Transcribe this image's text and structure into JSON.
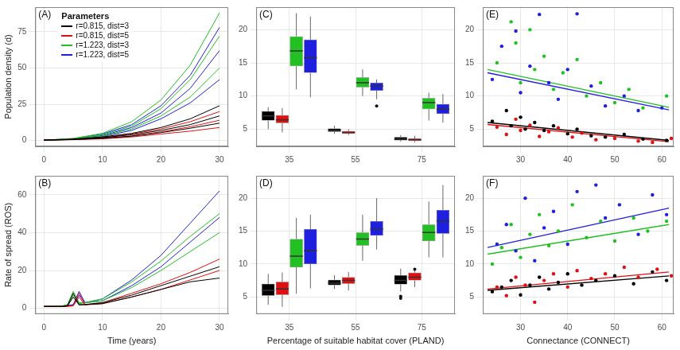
{
  "chart_data": [
    {
      "type": "line",
      "panel_label": "(A)",
      "y_label": "Population density (d)",
      "x": [
        0,
        5,
        10,
        15,
        20,
        25,
        30
      ],
      "xlim": [
        -1.5,
        31.5
      ],
      "xticks": [
        0,
        10,
        20,
        30
      ],
      "ylim": [
        -4,
        92
      ],
      "yticks": [
        0,
        25,
        50,
        75
      ],
      "grid": true,
      "legend": "top-left",
      "legend_title": "Parameters",
      "series": [
        {
          "name": "r=0.815, dist=3",
          "color": "#000000",
          "values": [
            [
              0.3,
              0.8,
              2,
              4,
              7,
              11,
              17
            ],
            [
              0.3,
              1,
              2.5,
              5,
              9,
              15,
              24
            ],
            [
              0.3,
              0.7,
              1.5,
              3,
              5.5,
              8.5,
              12
            ]
          ]
        },
        {
          "name": "r=0.815, dist=5",
          "color": "#e01010",
          "values": [
            [
              0.3,
              0.7,
              1.6,
              3.2,
              6,
              9.5,
              14
            ],
            [
              0.3,
              0.9,
              2.2,
              4.5,
              8,
              13,
              20
            ],
            [
              0.3,
              0.6,
              1.2,
              2.5,
              4.5,
              6.5,
              9
            ]
          ]
        },
        {
          "name": "r=1.223, dist=3",
          "color": "#22c022",
          "values": [
            [
              0.3,
              1.2,
              4,
              10,
              22,
              42,
              72
            ],
            [
              0.3,
              1.5,
              5,
              13,
              28,
              52,
              88
            ],
            [
              0.3,
              1,
              3,
              8,
              17,
              30,
              50
            ]
          ]
        },
        {
          "name": "r=1.223, dist=5",
          "color": "#1f1fe0",
          "values": [
            [
              0.3,
              1.1,
              3.5,
              9,
              19,
              36,
              62
            ],
            [
              0.3,
              1.3,
              4.5,
              11,
              24,
              45,
              78
            ],
            [
              0.3,
              0.9,
              2.8,
              7,
              15,
              26,
              42
            ]
          ]
        }
      ]
    },
    {
      "type": "box",
      "panel_label": "(C)",
      "categories": [
        "35",
        "55",
        "75"
      ],
      "ylim": [
        2.4,
        23.4
      ],
      "yticks": [
        5,
        10,
        15,
        20
      ],
      "grid": true,
      "series": [
        {
          "name": "r=0.815, dist=3",
          "color": "#000000",
          "min": [
            5,
            4.3,
            3.1
          ],
          "q1": [
            6.3,
            4.6,
            3.3
          ],
          "median": [
            7,
            4.8,
            3.5
          ],
          "q3": [
            7.7,
            5.1,
            3.8
          ],
          "max": [
            8.3,
            5.5,
            4.1
          ],
          "outliers": [
            [],
            [],
            []
          ]
        },
        {
          "name": "r=0.815, dist=5",
          "color": "#e01010",
          "min": [
            4.5,
            4.1,
            3.0
          ],
          "q1": [
            5.9,
            4.3,
            3.2
          ],
          "median": [
            6.4,
            4.5,
            3.4
          ],
          "q3": [
            7.1,
            4.7,
            3.6
          ],
          "max": [
            8.2,
            5.0,
            4.0
          ],
          "outliers": [
            [],
            [],
            []
          ]
        },
        {
          "name": "r=1.223, dist=3",
          "color": "#22c022",
          "min": [
            11,
            10,
            6.3
          ],
          "q1": [
            14.5,
            11.3,
            8
          ],
          "median": [
            16.8,
            12,
            9
          ],
          "q3": [
            19,
            12.8,
            9.7
          ],
          "max": [
            22.5,
            14,
            10.5
          ],
          "outliers": [
            [],
            [],
            []
          ]
        },
        {
          "name": "r=1.223, dist=5",
          "color": "#1f1fe0",
          "min": [
            9.8,
            9.5,
            6
          ],
          "q1": [
            13.5,
            10.8,
            7.3
          ],
          "median": [
            15.8,
            11.5,
            8
          ],
          "q3": [
            18.5,
            12,
            8.8
          ],
          "max": [
            22,
            12.5,
            10.3
          ],
          "outliers": [
            [],
            [
              8.5
            ],
            []
          ]
        }
      ]
    },
    {
      "type": "scatter",
      "panel_label": "(E)",
      "xlim": [
        22,
        62.5
      ],
      "xticks": [
        30,
        40,
        50,
        60
      ],
      "ylim": [
        2.4,
        23.4
      ],
      "yticks": [
        5,
        10,
        15,
        20
      ],
      "grid": true,
      "series": [
        {
          "name": "r=0.815, dist=3",
          "color": "#000000",
          "x": [
            24,
            27,
            28,
            30,
            31,
            33,
            35,
            37,
            40,
            42,
            45,
            48,
            52,
            56,
            61
          ],
          "y": [
            6.2,
            7.8,
            5.5,
            6.8,
            5.0,
            6.0,
            4.8,
            5.5,
            4.3,
            5.0,
            4.0,
            3.8,
            4.2,
            3.5,
            3.3
          ],
          "trend_x": [
            23,
            61.5
          ],
          "trend_y": [
            6.0,
            3.3
          ]
        },
        {
          "name": "r=0.815, dist=5",
          "color": "#e01010",
          "x": [
            25,
            27,
            29,
            30,
            32,
            34,
            36,
            38,
            41,
            43,
            46,
            50,
            55,
            58,
            62
          ],
          "y": [
            5.3,
            4.2,
            6.5,
            4.8,
            5.6,
            3.9,
            4.6,
            5.2,
            3.8,
            4.4,
            3.4,
            3.6,
            3.2,
            3.0,
            3.6
          ],
          "trend_x": [
            23,
            61.5
          ],
          "trend_y": [
            5.7,
            3.1
          ]
        },
        {
          "name": "r=1.223, dist=3",
          "color": "#22c022",
          "x": [
            25,
            28,
            29,
            30,
            32,
            33,
            35,
            37,
            39,
            42,
            44,
            47,
            50,
            53,
            56,
            61
          ],
          "y": [
            15,
            21.2,
            18,
            12,
            20,
            14,
            16,
            11,
            13.5,
            15.5,
            10,
            12,
            9,
            11,
            8.2,
            10
          ],
          "trend_x": [
            23,
            61.5
          ],
          "trend_y": [
            14,
            8.3
          ]
        },
        {
          "name": "r=1.223, dist=5",
          "color": "#1f1fe0",
          "x": [
            24,
            26,
            29,
            30,
            32,
            34,
            36,
            38,
            40,
            42,
            45,
            48,
            52,
            55,
            60
          ],
          "y": [
            12.5,
            17.5,
            19.8,
            10.5,
            14.5,
            22.3,
            12,
            9.5,
            14,
            22.4,
            11.5,
            8.5,
            10,
            7.8,
            8.2
          ],
          "trend_x": [
            23,
            61.5
          ],
          "trend_y": [
            13.5,
            7.9
          ]
        }
      ]
    },
    {
      "type": "line",
      "panel_label": "(B)",
      "y_label": "Rate of spread (ROS)",
      "x_label": "Time (years)",
      "x": [
        0,
        3,
        4,
        5,
        6,
        7,
        10,
        15,
        20,
        25,
        30
      ],
      "xlim": [
        -1.5,
        31.5
      ],
      "xticks": [
        0,
        10,
        20,
        30
      ],
      "ylim": [
        -3,
        70
      ],
      "yticks": [
        0,
        20,
        40,
        60
      ],
      "grid": true,
      "series": [
        {
          "name": "r=0.815, dist=3",
          "color": "#000000",
          "values": [
            [
              1,
              1,
              1.5,
              8,
              2,
              2,
              3,
              7,
              12,
              17,
              22
            ],
            [
              1,
              1,
              1.2,
              6,
              1.8,
              2,
              2.5,
              6,
              10,
              14,
              16
            ]
          ]
        },
        {
          "name": "r=0.815, dist=5",
          "color": "#e01010",
          "values": [
            [
              1,
              1,
              1.2,
              1.5,
              8,
              2,
              3,
              8,
              13,
              19,
              26
            ],
            [
              1,
              1,
              1,
              1.3,
              6,
              1.8,
              2.5,
              6,
              10,
              15,
              20
            ]
          ]
        },
        {
          "name": "r=1.223, dist=3",
          "color": "#22c022",
          "values": [
            [
              1,
              1.2,
              2,
              9,
              3,
              3,
              5,
              14,
              25,
              38,
              50
            ],
            [
              1,
              1.1,
              1.8,
              7,
              2.5,
              3,
              4,
              11,
              20,
              30,
              40
            ]
          ]
        },
        {
          "name": "r=1.223, dist=5",
          "color": "#1f1fe0",
          "values": [
            [
              1,
              1.2,
              1.5,
              2,
              9,
              3,
              5,
              15,
              28,
              45,
              62
            ],
            [
              1,
              1.1,
              1.4,
              1.8,
              7,
              3,
              4,
              12,
              22,
              35,
              48
            ]
          ]
        }
      ]
    },
    {
      "type": "box",
      "panel_label": "(D)",
      "x_label": "Percentage of suitable habitat cover (PLAND)",
      "categories": [
        "35",
        "55",
        "75"
      ],
      "ylim": [
        2.4,
        23.4
      ],
      "yticks": [
        5,
        10,
        15,
        20
      ],
      "grid": true,
      "series": [
        {
          "name": "r=0.815, dist=3",
          "color": "#000000",
          "min": [
            3.8,
            6.2,
            5.8
          ],
          "q1": [
            5.2,
            6.8,
            6.9
          ],
          "median": [
            6,
            7.1,
            7.5
          ],
          "q3": [
            7,
            7.6,
            8.3
          ],
          "max": [
            8.5,
            8.3,
            9.3
          ],
          "outliers": [
            [],
            [],
            [
              4.8,
              5.1
            ]
          ]
        },
        {
          "name": "r=0.815, dist=5",
          "color": "#e01010",
          "min": [
            3.5,
            6,
            6.5
          ],
          "q1": [
            5.3,
            7,
            7.5
          ],
          "median": [
            6.2,
            7.5,
            8
          ],
          "q3": [
            7.3,
            8,
            8.7
          ],
          "max": [
            8.7,
            8.8,
            9.0
          ],
          "outliers": [
            [],
            [],
            [
              9.2
            ]
          ]
        },
        {
          "name": "r=1.223, dist=3",
          "color": "#22c022",
          "min": [
            5.5,
            10.5,
            11
          ],
          "q1": [
            9.5,
            12.8,
            13.5
          ],
          "median": [
            11.2,
            13.8,
            14.8
          ],
          "q3": [
            13.8,
            14.8,
            16
          ],
          "max": [
            17,
            17.5,
            19.5
          ],
          "outliers": [
            [],
            [],
            []
          ]
        },
        {
          "name": "r=1.223, dist=5",
          "color": "#1f1fe0",
          "min": [
            6.3,
            12.2,
            11
          ],
          "q1": [
            10,
            14.3,
            14.6
          ],
          "median": [
            12,
            15.3,
            16.5
          ],
          "q3": [
            15.3,
            16.5,
            18.2
          ],
          "max": [
            17.5,
            20,
            22
          ],
          "outliers": [
            [],
            [],
            []
          ]
        }
      ]
    },
    {
      "type": "scatter",
      "panel_label": "(F)",
      "x_label": "Connectance (CONNECT)",
      "xlim": [
        22,
        62.5
      ],
      "xticks": [
        30,
        40,
        50,
        60
      ],
      "ylim": [
        2.4,
        23.4
      ],
      "yticks": [
        5,
        10,
        15,
        20
      ],
      "grid": true,
      "series": [
        {
          "name": "r=0.815, dist=3",
          "color": "#000000",
          "x": [
            24,
            26,
            28,
            30,
            32,
            34,
            36,
            38,
            40,
            43,
            46,
            50,
            54,
            58,
            61
          ],
          "y": [
            5.8,
            6.5,
            7.5,
            5.3,
            6.8,
            8,
            6.2,
            7.2,
            8.5,
            6.8,
            7.5,
            8.2,
            7,
            8.8,
            7.5
          ],
          "trend_x": [
            23,
            61.5
          ],
          "trend_y": [
            6.0,
            8.2
          ]
        },
        {
          "name": "r=0.815, dist=5",
          "color": "#e01010",
          "x": [
            25,
            27,
            29,
            31,
            33,
            35,
            37,
            40,
            42,
            45,
            48,
            52,
            55,
            59,
            62
          ],
          "y": [
            6.5,
            5.2,
            8,
            6.8,
            4.2,
            7.5,
            8.5,
            6.5,
            9,
            7.8,
            8.5,
            9.5,
            8,
            9.2,
            8.2
          ],
          "trend_x": [
            23,
            61.5
          ],
          "trend_y": [
            6.2,
            8.8
          ]
        },
        {
          "name": "r=1.223, dist=3",
          "color": "#22c022",
          "x": [
            24,
            26,
            28,
            30,
            32,
            34,
            36,
            38,
            41,
            44,
            47,
            50,
            54,
            57,
            61
          ],
          "y": [
            10,
            12.5,
            16,
            11,
            14.5,
            17.5,
            12.8,
            15,
            19,
            14,
            16.5,
            13.5,
            17,
            15,
            16.5
          ],
          "trend_x": [
            23,
            61.5
          ],
          "trend_y": [
            11.5,
            16
          ]
        },
        {
          "name": "r=1.223, dist=5",
          "color": "#1f1fe0",
          "x": [
            25,
            27,
            29,
            31,
            33,
            35,
            37,
            40,
            42,
            46,
            48,
            51,
            55,
            58,
            61
          ],
          "y": [
            13,
            16,
            12,
            20,
            10.5,
            15.5,
            18,
            13,
            21,
            22,
            17,
            19,
            14.5,
            20.5,
            17.5
          ],
          "trend_x": [
            23,
            61.5
          ],
          "trend_y": [
            12.5,
            18.5
          ]
        }
      ]
    }
  ]
}
